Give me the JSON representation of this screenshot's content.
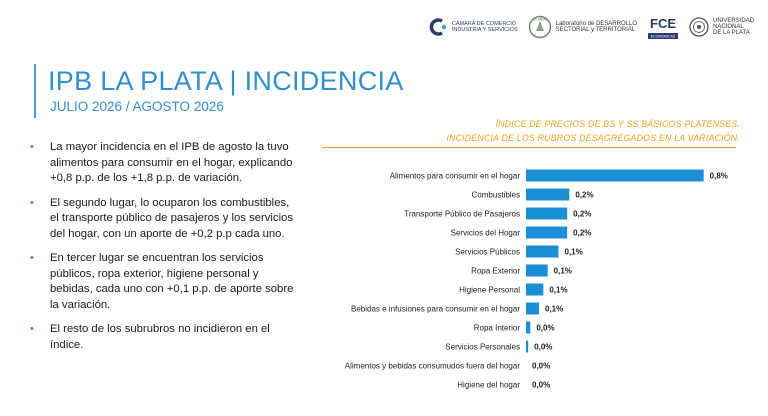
{
  "logos": {
    "camara_line1": "CÁMARA DE COMERCIO",
    "camara_line2": "INDUSTRIA Y SERVICIOS",
    "anios_badge": "10 AÑOS",
    "lab_line1": "Laboratorio de DESARROLLO",
    "lab_line2": "SECTORIAL y TERRITORIAL",
    "fce_mark": "FCE",
    "fce_line": "ECONÓMICAS",
    "unlp_line1": "UNIVERSIDAD",
    "unlp_line2": "NACIONAL",
    "unlp_line3": "DE LA PLATA"
  },
  "header": {
    "title": "IPB LA PLATA | INCIDENCIA",
    "subtitle": "JULIO 2026 / AGOSTO 2026"
  },
  "bullets": [
    "La mayor incidencia en el IPB de agosto la tuvo alimentos para consumir en el hogar, explicando +0,8 p.p. de los +1,8 p.p. de variación.",
    "El segundo lugar, lo ocuparon los combustibles, el transporte público de pasajeros y los servicios del hogar, con un aporte de +0,2 p.p cada uno.",
    "En tercer lugar se encuentran los servicios públicos, ropa exterior, higiene personal y bebidas, cada uno con +0,1 p.p. de aporte sobre la variación.",
    "El resto de los subrubros no incidieron en el índice."
  ],
  "chart_data": {
    "type": "bar",
    "orientation": "horizontal",
    "title_line1": "ÍNDICE DE PRECIOS DE BS Y SS BÁSICOS PLATENSES.",
    "title_line2": "INCIDENCIA DE LOS RUBROS DESAGREGADOS EN LA VARIACIÓN.",
    "categories": [
      "Alimentos para consumir en el hogar",
      "Combustibles",
      "Transporte Público de Pasajeros",
      "Servicios del Hogar",
      "Servicios Públicos",
      "Ropa Exterior",
      "Higiene Personal",
      "Bebidas e infusiones para consumir en el hogar",
      "Ropa Interior",
      "Servicios Personales",
      "Alimentos y bebidas consumudos fuera del hogar",
      "Higiene del hogar"
    ],
    "values": [
      0.82,
      0.2,
      0.19,
      0.19,
      0.15,
      0.1,
      0.08,
      0.06,
      0.02,
      0.01,
      0.0,
      0.0
    ],
    "value_labels": [
      "0,8%",
      "0,2%",
      "0,2%",
      "0,2%",
      "0,1%",
      "0,1%",
      "0,1%",
      "0,1%",
      "0,0%",
      "0,0%",
      "0,0%",
      "0,0%"
    ],
    "xlim": [
      0,
      0.9
    ],
    "grid": false,
    "bar_color": "#1b8fd6"
  }
}
